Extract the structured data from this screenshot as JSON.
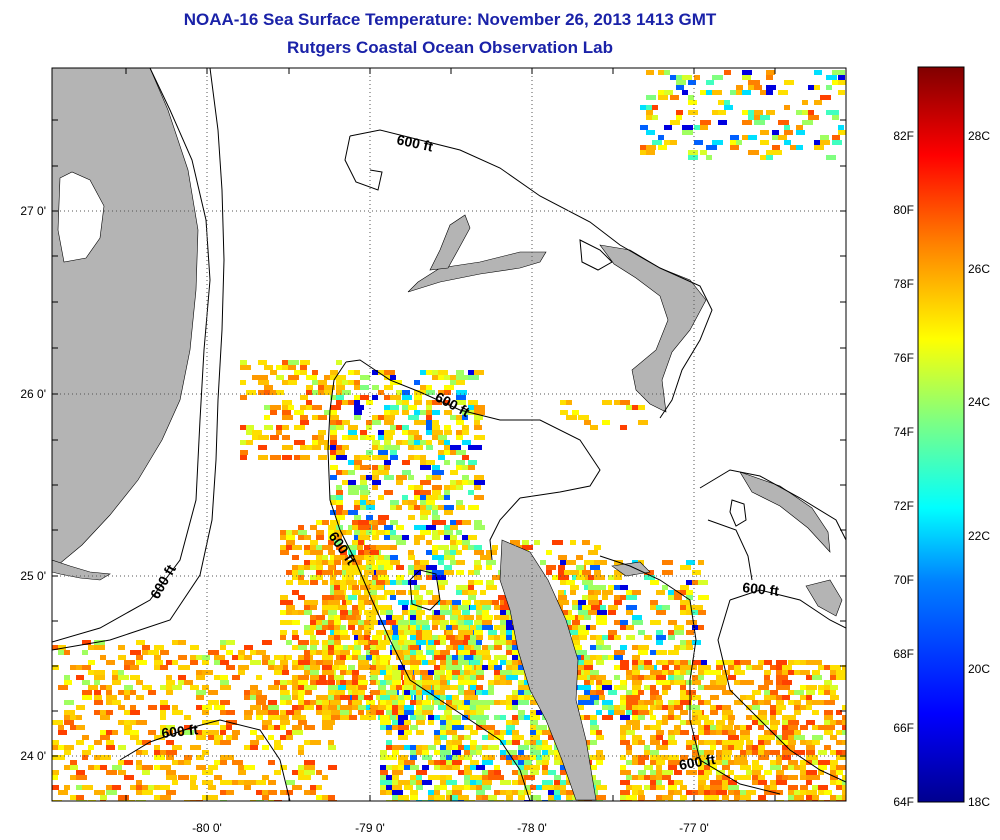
{
  "header": {
    "title": "NOAA-16 Sea Surface Temperature:  November 26, 2013 1413 GMT",
    "subtitle": "Rutgers Coastal Ocean Observation Lab"
  },
  "map": {
    "lat_labels": [
      "27 0'",
      "26 0'",
      "25 0'",
      "24 0'"
    ],
    "lon_labels": [
      "-80 0'",
      "-79 0'",
      "-78 0'",
      "-77 0'"
    ],
    "contour_labels": [
      "600 ft",
      "600 ft",
      "600 ft",
      "600 ft",
      "600 ft",
      "600 ft"
    ],
    "land_color": "#b4b4b4",
    "missing_data_color": "#ffffff"
  },
  "colorbar": {
    "fahrenheit_labels": [
      "82F",
      "80F",
      "78F",
      "76F",
      "74F",
      "72F",
      "70F",
      "68F",
      "66F",
      "64F"
    ],
    "celsius_labels": [
      "28C",
      "26C",
      "24C",
      "22C",
      "20C",
      "18C"
    ],
    "range_celsius": [
      18,
      29.5
    ],
    "colormap": [
      "#00008f",
      "#0000ff",
      "#0080ff",
      "#00ffff",
      "#80ff80",
      "#ffff00",
      "#ff8000",
      "#ff0000",
      "#800000"
    ]
  }
}
